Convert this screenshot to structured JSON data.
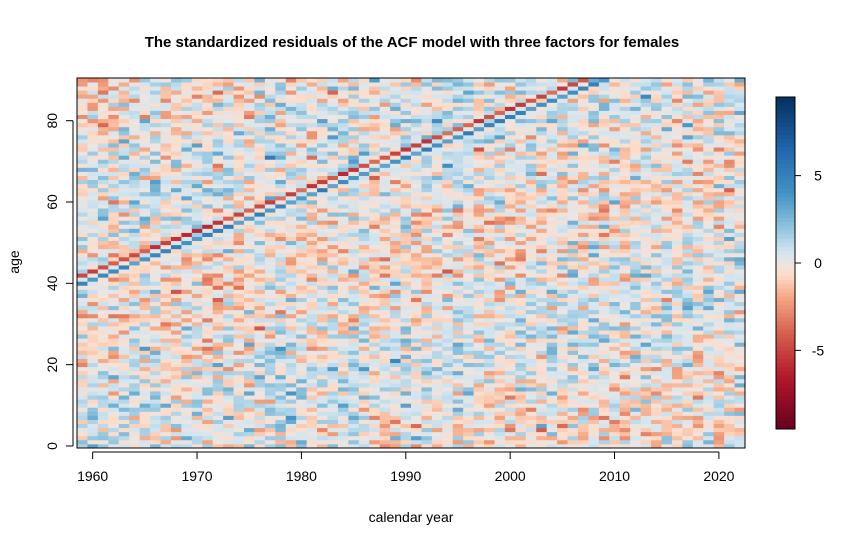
{
  "chart_data": {
    "type": "heatmap",
    "title": "The standardized residuals of the ACF model with three factors for females",
    "xlabel": "calendar year",
    "ylabel": "age",
    "x_range": [
      1959,
      2022
    ],
    "y_range": [
      0,
      90
    ],
    "x_ticks": [
      "1960",
      "1970",
      "1980",
      "1990",
      "2000",
      "2010",
      "2020"
    ],
    "y_ticks": [
      "0",
      "20",
      "40",
      "60",
      "80"
    ],
    "colorbar": {
      "ticks": [
        "5",
        "0",
        "-5"
      ],
      "range": [
        -9.5,
        9.5
      ],
      "palette": "RdBu diverging (red = negative, blue = positive)"
    },
    "features": {
      "cohort_diagonal_blue": "age = year - 1919",
      "cohort_diagonal_red": "age = year - 1917",
      "cell_values": "generated with a seeded pseudo-random generator; individual cell values are not readable from the figure"
    }
  }
}
